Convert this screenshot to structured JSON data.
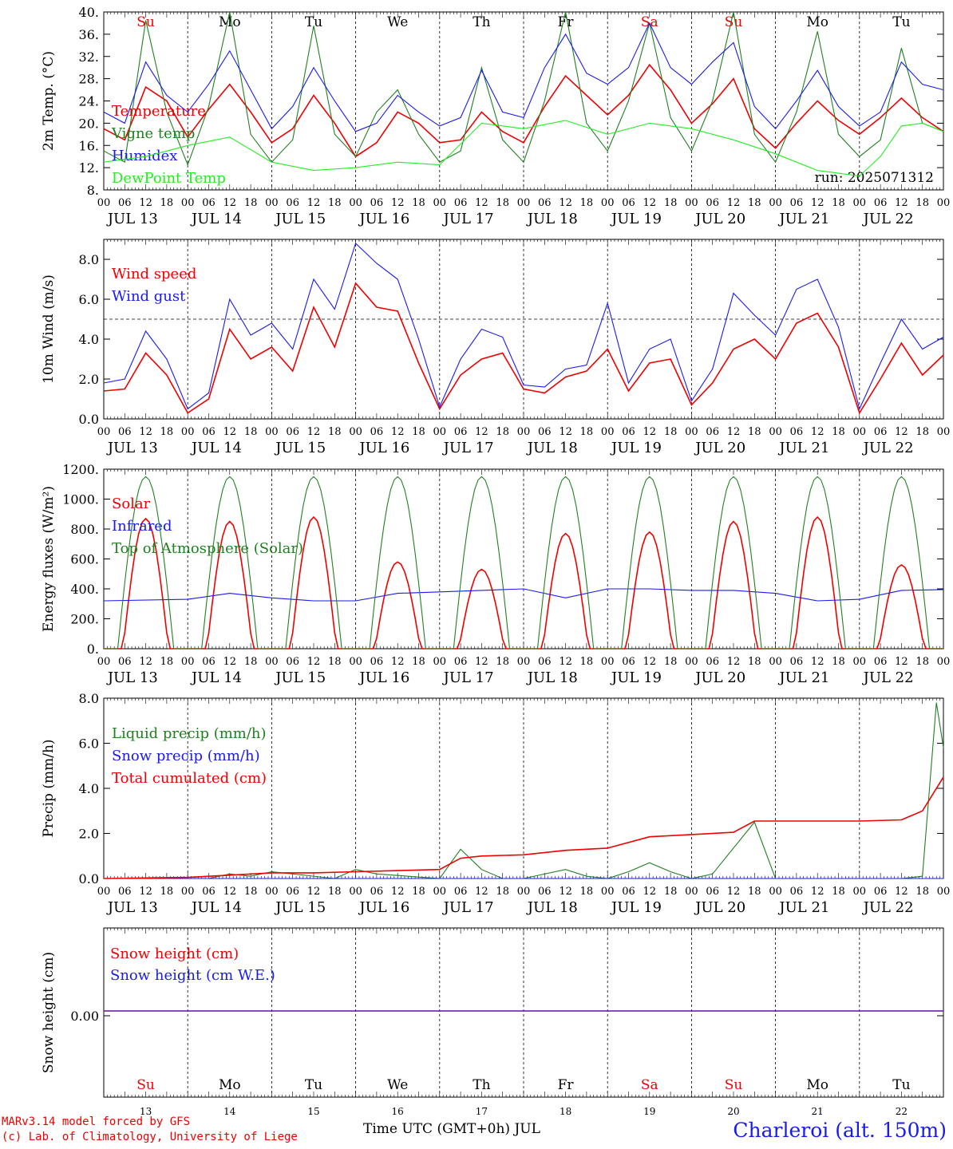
{
  "chart_data": [
    {
      "type": "line",
      "title": "",
      "ylabel": "2m Temp. (°C)",
      "ylim": [
        8,
        40
      ],
      "yticks": [
        "8.",
        "12.",
        "16.",
        "20.",
        "24.",
        "28.",
        "32.",
        "36.",
        "40."
      ],
      "hours_axis": [
        "00",
        "06",
        "12",
        "18"
      ],
      "date_labels": [
        "JUL 13",
        "JUL 14",
        "JUL 15",
        "JUL 16",
        "JUL 17",
        "JUL 18",
        "JUL 19",
        "JUL 20",
        "JUL 21",
        "JUL 22"
      ],
      "weekdays": [
        "Su",
        "Mo",
        "Tu",
        "We",
        "Th",
        "Fr",
        "Sa",
        "Su",
        "Mo",
        "Tu"
      ],
      "weekday_colors": [
        "#ee0000",
        "#000000",
        "#000000",
        "#000000",
        "#000000",
        "#000000",
        "#ee0000",
        "#ee0000",
        "#000000",
        "#000000"
      ],
      "run_label": "run: 2025071312",
      "series": [
        {
          "name": "Temperature",
          "color": "#ee0000",
          "hours": [
            0,
            6,
            12,
            18,
            24,
            30,
            36,
            42,
            48,
            54,
            60,
            66,
            72,
            78,
            84,
            90,
            96,
            102,
            108,
            114,
            120,
            126,
            132,
            138,
            144,
            150,
            156,
            162,
            168,
            174,
            180,
            186,
            192,
            198,
            204,
            210,
            216,
            222,
            228,
            234,
            240
          ],
          "values": [
            19,
            17,
            26.5,
            24,
            17.5,
            22.5,
            27,
            22,
            16.5,
            19,
            25,
            20,
            14,
            16.5,
            22,
            20,
            16.5,
            17,
            22,
            18.5,
            16.5,
            23,
            28.5,
            25,
            21.5,
            25,
            30.5,
            26,
            20,
            23.5,
            28,
            19,
            15.5,
            20,
            24,
            20.5,
            18,
            21,
            24.5,
            21,
            18.5
          ]
        },
        {
          "name": "Vigne temp",
          "color": "#208020",
          "hours": [
            0,
            6,
            12,
            18,
            24,
            30,
            36,
            42,
            48,
            54,
            60,
            66,
            72,
            78,
            84,
            90,
            96,
            102,
            108,
            114,
            120,
            126,
            132,
            138,
            144,
            150,
            156,
            162,
            168,
            174,
            180,
            186,
            192,
            198,
            204,
            210,
            216,
            222,
            228,
            234,
            240
          ],
          "values": [
            15,
            13,
            38.5,
            22,
            12.5,
            23,
            40,
            18,
            13,
            17,
            37.5,
            18,
            14,
            22,
            26,
            18,
            13,
            15,
            30,
            17,
            13,
            24,
            40,
            20,
            15,
            24,
            38,
            21,
            15,
            24,
            40,
            18,
            13,
            22,
            36.5,
            18,
            14,
            17,
            33.5,
            20,
            18.5
          ]
        },
        {
          "name": "Humidex",
          "color": "#1a1aee",
          "hours": [
            0,
            6,
            12,
            18,
            24,
            30,
            36,
            42,
            48,
            54,
            60,
            66,
            72,
            78,
            84,
            90,
            96,
            102,
            108,
            114,
            120,
            126,
            132,
            138,
            144,
            150,
            156,
            162,
            168,
            174,
            180,
            186,
            192,
            198,
            204,
            210,
            216,
            222,
            228,
            234,
            240
          ],
          "values": [
            22,
            20,
            31,
            25,
            22,
            27,
            33,
            26,
            19,
            23,
            30,
            24,
            18.5,
            20,
            25,
            22,
            19.5,
            21,
            29.5,
            22,
            21,
            30,
            36,
            29,
            27,
            30,
            38,
            30,
            27,
            31,
            34.5,
            23,
            19,
            24,
            29.5,
            23,
            19.5,
            22,
            31,
            27,
            26
          ]
        },
        {
          "name": "DewPoint Temp",
          "color": "#22ee22",
          "hours": [
            0,
            12,
            24,
            36,
            48,
            60,
            72,
            84,
            96,
            108,
            120,
            132,
            144,
            156,
            168,
            180,
            192,
            204,
            216,
            222,
            228,
            234,
            240
          ],
          "values": [
            13,
            14,
            16,
            17.5,
            13,
            11.5,
            12,
            13,
            12.5,
            20,
            19,
            20.5,
            18,
            20,
            19,
            17,
            14.5,
            11.5,
            10.5,
            14,
            19.5,
            20,
            18.5
          ]
        }
      ]
    },
    {
      "type": "line",
      "title": "",
      "ylabel": "10m Wind (m/s)",
      "ylim": [
        0,
        9
      ],
      "yticks": [
        "0.0",
        "2.0",
        "4.0",
        "6.0",
        "8.0"
      ],
      "reference_line": 5,
      "series": [
        {
          "name": "Wind speed",
          "color": "#ee0000",
          "hours": [
            0,
            6,
            12,
            18,
            24,
            30,
            36,
            42,
            48,
            54,
            60,
            66,
            72,
            78,
            84,
            90,
            96,
            102,
            108,
            114,
            120,
            126,
            132,
            138,
            144,
            150,
            156,
            162,
            168,
            174,
            180,
            186,
            192,
            198,
            204,
            210,
            216,
            222,
            228,
            234,
            240
          ],
          "values": [
            1.4,
            1.5,
            3.3,
            2.2,
            0.3,
            1.0,
            4.5,
            3.0,
            3.6,
            2.4,
            5.6,
            3.6,
            6.8,
            5.6,
            5.4,
            2.8,
            0.5,
            2.2,
            3.0,
            3.3,
            1.5,
            1.3,
            2.1,
            2.4,
            3.5,
            1.4,
            2.8,
            3.0,
            0.7,
            1.8,
            3.5,
            4.0,
            3.0,
            4.8,
            5.3,
            3.6,
            0.3,
            2.0,
            3.8,
            2.2,
            3.2
          ]
        },
        {
          "name": "Wind gust",
          "color": "#1a1aee",
          "hours": [
            0,
            6,
            12,
            18,
            24,
            30,
            36,
            42,
            48,
            54,
            60,
            66,
            72,
            78,
            84,
            90,
            96,
            102,
            108,
            114,
            120,
            126,
            132,
            138,
            144,
            150,
            156,
            162,
            168,
            174,
            180,
            186,
            192,
            198,
            204,
            210,
            216,
            222,
            228,
            234,
            240
          ],
          "values": [
            1.8,
            2.0,
            4.4,
            3.0,
            0.5,
            1.3,
            6.0,
            4.2,
            4.8,
            3.5,
            7.0,
            5.5,
            8.8,
            7.8,
            7.0,
            4.0,
            0.6,
            3.0,
            4.5,
            4.1,
            1.7,
            1.6,
            2.5,
            2.7,
            5.8,
            1.8,
            3.5,
            4.0,
            0.9,
            2.5,
            6.3,
            5.2,
            4.2,
            6.5,
            7.0,
            4.6,
            0.5,
            2.8,
            5.0,
            3.5,
            4.1
          ]
        }
      ]
    },
    {
      "type": "line",
      "title": "",
      "ylabel": "Energy fluxes (W/m²)",
      "ylim": [
        0,
        1200
      ],
      "yticks": [
        "0.",
        "200.",
        "400.",
        "600.",
        "800.",
        "1000.",
        "1200."
      ],
      "series": [
        {
          "name": "Solar",
          "color": "#ee0000",
          "daily_peak": [
            870,
            850,
            880,
            580,
            530,
            770,
            780,
            850,
            880,
            560
          ]
        },
        {
          "name": "Infrared",
          "color": "#1a1aee",
          "hours": [
            0,
            24,
            36,
            48,
            60,
            72,
            84,
            96,
            108,
            120,
            132,
            144,
            156,
            168,
            180,
            192,
            204,
            216,
            228,
            240
          ],
          "values": [
            320,
            330,
            370,
            340,
            320,
            320,
            370,
            380,
            390,
            400,
            340,
            400,
            400,
            390,
            390,
            370,
            320,
            330,
            390,
            395
          ]
        },
        {
          "name": "Top of Atmosphere (Solar)",
          "color": "#208020",
          "daily_peak": [
            1150,
            1150,
            1150,
            1150,
            1150,
            1150,
            1150,
            1150,
            1150,
            1150
          ]
        }
      ]
    },
    {
      "type": "line",
      "title": "",
      "ylabel": "Precip (mm/h)",
      "ylim": [
        0,
        8
      ],
      "yticks": [
        "0.0",
        "2.0",
        "4.0",
        "6.0",
        "8.0"
      ],
      "series": [
        {
          "name": "Liquid precip (mm/h)",
          "color": "#208020",
          "hours": [
            0,
            30,
            36,
            42,
            48,
            66,
            72,
            78,
            96,
            102,
            108,
            114,
            120,
            132,
            138,
            144,
            150,
            156,
            162,
            168,
            174,
            186,
            192,
            198,
            216,
            228,
            234,
            238,
            240
          ],
          "values": [
            0,
            0,
            0.2,
            0.1,
            0.3,
            0,
            0.4,
            0.2,
            0,
            1.3,
            0.4,
            0,
            0,
            0.4,
            0.1,
            0,
            0.3,
            0.7,
            0.3,
            0,
            0.2,
            2.5,
            0,
            0,
            0,
            0,
            0.1,
            7.8,
            5.8
          ]
        },
        {
          "name": "Snow precip (mm/h)",
          "color": "#1a1aee",
          "hours": [
            0,
            240
          ],
          "values": [
            0,
            0
          ]
        },
        {
          "name": "Total cumulated (cm)",
          "color": "#ee0000",
          "hours": [
            0,
            24,
            36,
            48,
            60,
            72,
            84,
            96,
            102,
            108,
            120,
            132,
            144,
            156,
            168,
            180,
            186,
            192,
            204,
            216,
            228,
            234,
            240
          ],
          "values": [
            0,
            0.05,
            0.15,
            0.25,
            0.25,
            0.3,
            0.35,
            0.4,
            0.9,
            1.0,
            1.05,
            1.25,
            1.35,
            1.85,
            1.95,
            2.05,
            2.55,
            2.55,
            2.55,
            2.55,
            2.6,
            3.0,
            4.5
          ]
        }
      ]
    },
    {
      "type": "line",
      "title": "",
      "ylabel": "Snow height (cm)",
      "yticks": [
        "0.00"
      ],
      "day_numbers": [
        "13",
        "14",
        "15",
        "16",
        "17",
        "18",
        "19",
        "20",
        "21",
        "22"
      ],
      "series": [
        {
          "name": "Snow height (cm)",
          "color": "#ee0000",
          "hours": [
            0,
            240
          ],
          "values": [
            0,
            0
          ]
        },
        {
          "name": "Snow height (cm W.E.)",
          "color": "#1a1aee",
          "hours": [
            0,
            240
          ],
          "values": [
            0,
            0
          ]
        }
      ]
    }
  ],
  "footer": {
    "model_line1": "MARv3.14 model forced by GFS",
    "model_line2": "(c) Lab. of Climatology, University of Liege",
    "xlabel": "Time UTC (GMT+0h) JUL",
    "location": "Charleroi (alt. 150m)"
  }
}
